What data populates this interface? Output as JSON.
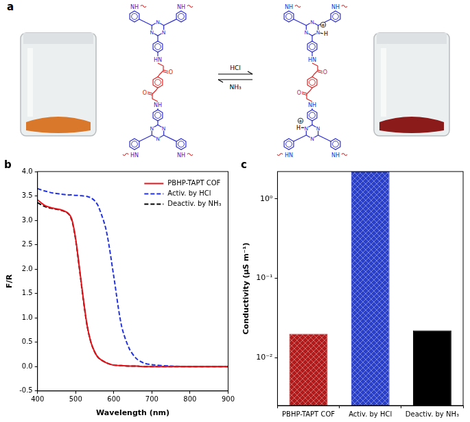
{
  "scheme": {
    "title": "a",
    "forward": "HCl",
    "backward": "NH₃",
    "amine": "NH",
    "amine_left": "HN",
    "ring_n": "N",
    "carbonyl": "O",
    "proton": "H",
    "charge": "+"
  },
  "chart_data": [
    {
      "type": "line",
      "title": "b",
      "xlabel": "Wavelength (nm)",
      "ylabel": "F/R",
      "x": [
        400,
        420,
        440,
        460,
        480,
        490,
        500,
        510,
        520,
        530,
        540,
        550,
        560,
        580,
        600,
        620,
        640,
        660,
        680,
        700,
        750,
        800,
        900
      ],
      "series": [
        {
          "name": "PBHP-TAPT COF",
          "color": "#e8141c",
          "line_style": "solid",
          "values": [
            3.42,
            3.3,
            3.25,
            3.22,
            3.15,
            3.02,
            2.62,
            2.02,
            1.4,
            0.85,
            0.5,
            0.3,
            0.18,
            0.08,
            0.03,
            0.02,
            0.01,
            0.01,
            0.0,
            0.0,
            0.0,
            0.0,
            0.0
          ]
        },
        {
          "name": "Activ. by HCl",
          "color": "#2233dd",
          "line_style": "dashed",
          "values": [
            3.65,
            3.6,
            3.56,
            3.54,
            3.52,
            3.52,
            3.51,
            3.51,
            3.5,
            3.49,
            3.46,
            3.4,
            3.28,
            2.8,
            1.85,
            0.85,
            0.38,
            0.16,
            0.07,
            0.04,
            0.01,
            0.0,
            0.0
          ]
        },
        {
          "name": "Deactiv. by NH₃",
          "color": "#000000",
          "line_style": "dashed",
          "values": [
            3.36,
            3.28,
            3.24,
            3.21,
            3.14,
            3.0,
            2.6,
            2.0,
            1.38,
            0.84,
            0.5,
            0.3,
            0.18,
            0.08,
            0.03,
            0.02,
            0.01,
            0.01,
            0.0,
            0.0,
            0.0,
            0.0,
            0.0
          ]
        }
      ],
      "xlim": [
        400,
        900
      ],
      "xticks": [
        400,
        500,
        600,
        700,
        800,
        900
      ],
      "ylim": [
        -0.5,
        4.0
      ],
      "yticks": [
        -0.5,
        {
          "value": 0,
          "label": "0.0"
        },
        0.5,
        {
          "value": 1,
          "label": "1.0"
        },
        1.5,
        {
          "value": 2,
          "label": "2.0"
        },
        2.5,
        {
          "value": 3,
          "label": "3.0"
        },
        3.5,
        {
          "value": 4,
          "label": "4.0"
        }
      ],
      "grid": false,
      "legend": "upper right"
    },
    {
      "type": "bar",
      "title": "c",
      "ylabel": "Conductivity (μS m⁻¹)",
      "categories": [
        "PBHP-TAPT COF",
        "Activ. by HCl",
        "Deactiv. by NH₃"
      ],
      "values": [
        0.02,
        2.2,
        0.022
      ],
      "colors": [
        "#b01a1a",
        "#2a3fc8",
        "#000000"
      ],
      "log": "y",
      "ylim": [
        0.0025,
        2.2
      ],
      "yticks": [
        {
          "value": 0.01,
          "label": "10⁻²"
        },
        {
          "value": 0.1,
          "label": "10⁻¹"
        },
        {
          "value": 1,
          "label": "10⁰"
        }
      ],
      "grid": false
    }
  ]
}
